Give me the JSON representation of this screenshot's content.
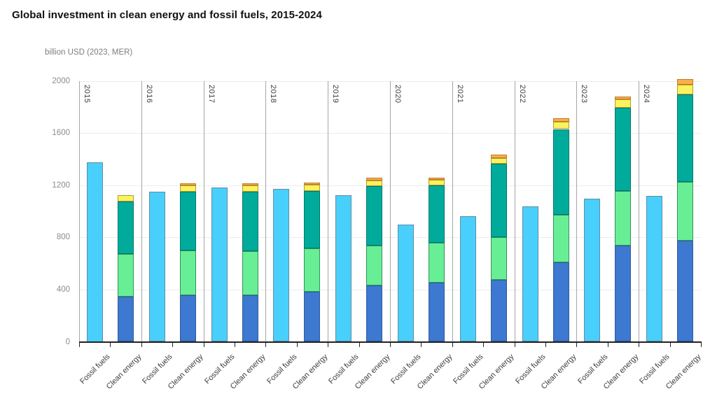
{
  "header": {
    "title": "Global investment in clean energy and fossil fuels, 2015-2024",
    "unit_label": "billion USD (2023, MER)"
  },
  "chart_data": {
    "type": "bar",
    "title": "Global investment in clean energy and fossil fuels, 2015-2024",
    "ylabel": "billion USD (2023, MER)",
    "ylim": [
      0,
      2000
    ],
    "yticks": [
      0,
      400,
      800,
      1200,
      1600,
      2000
    ],
    "grid": "horizontal",
    "legend_position": "none",
    "categories": [
      "2015",
      "2016",
      "2017",
      "2018",
      "2019",
      "2020",
      "2021",
      "2022",
      "2023",
      "2024"
    ],
    "pair_labels": [
      "Fossil fuels",
      "Clean energy"
    ],
    "series": [
      {
        "name": "Fossil fuels",
        "style": "single",
        "color": "#49CFFB",
        "values": [
          1375,
          1148,
          1180,
          1171,
          1126,
          900,
          965,
          1036,
          1099,
          1117
        ]
      },
      {
        "name": "Clean energy",
        "style": "stacked",
        "totals": [
          1123,
          1212,
          1215,
          1220,
          1256,
          1260,
          1433,
          1712,
          1883,
          2011
        ],
        "segments": [
          {
            "name": "segment-blue",
            "color": "#3D78D1",
            "values": [
              345,
              354,
              354,
              381,
              429,
              452,
              473,
              607,
              738,
              774
            ]
          },
          {
            "name": "segment-green",
            "color": "#68EE95",
            "values": [
              330,
              348,
              343,
              334,
              309,
              307,
              326,
              367,
              418,
              450
            ]
          },
          {
            "name": "segment-teal",
            "color": "#00AB9C",
            "values": [
              398,
              450,
              452,
              441,
              456,
              442,
              568,
              656,
              640,
              670
            ]
          },
          {
            "name": "segment-yellow",
            "color": "#FCF25D",
            "values": [
              50,
              48,
              50,
              47,
              44,
              41,
              40,
              57,
              61,
              77
            ]
          },
          {
            "name": "segment-orange",
            "color": "#F9AE4A",
            "values": [
              0,
              12,
              16,
              17,
              18,
              18,
              26,
              25,
              25,
              40
            ]
          }
        ]
      }
    ],
    "colors": {
      "fossil_fuels": "#49CFFB",
      "clean_blue": "#3D78D1",
      "clean_green": "#68EE95",
      "clean_teal": "#00AB9C",
      "clean_yellow": "#FCF25D",
      "clean_orange": "#F9AE4A",
      "gridline": "#ececec",
      "separator": "#a6a6a6",
      "axis": "#222222"
    }
  }
}
